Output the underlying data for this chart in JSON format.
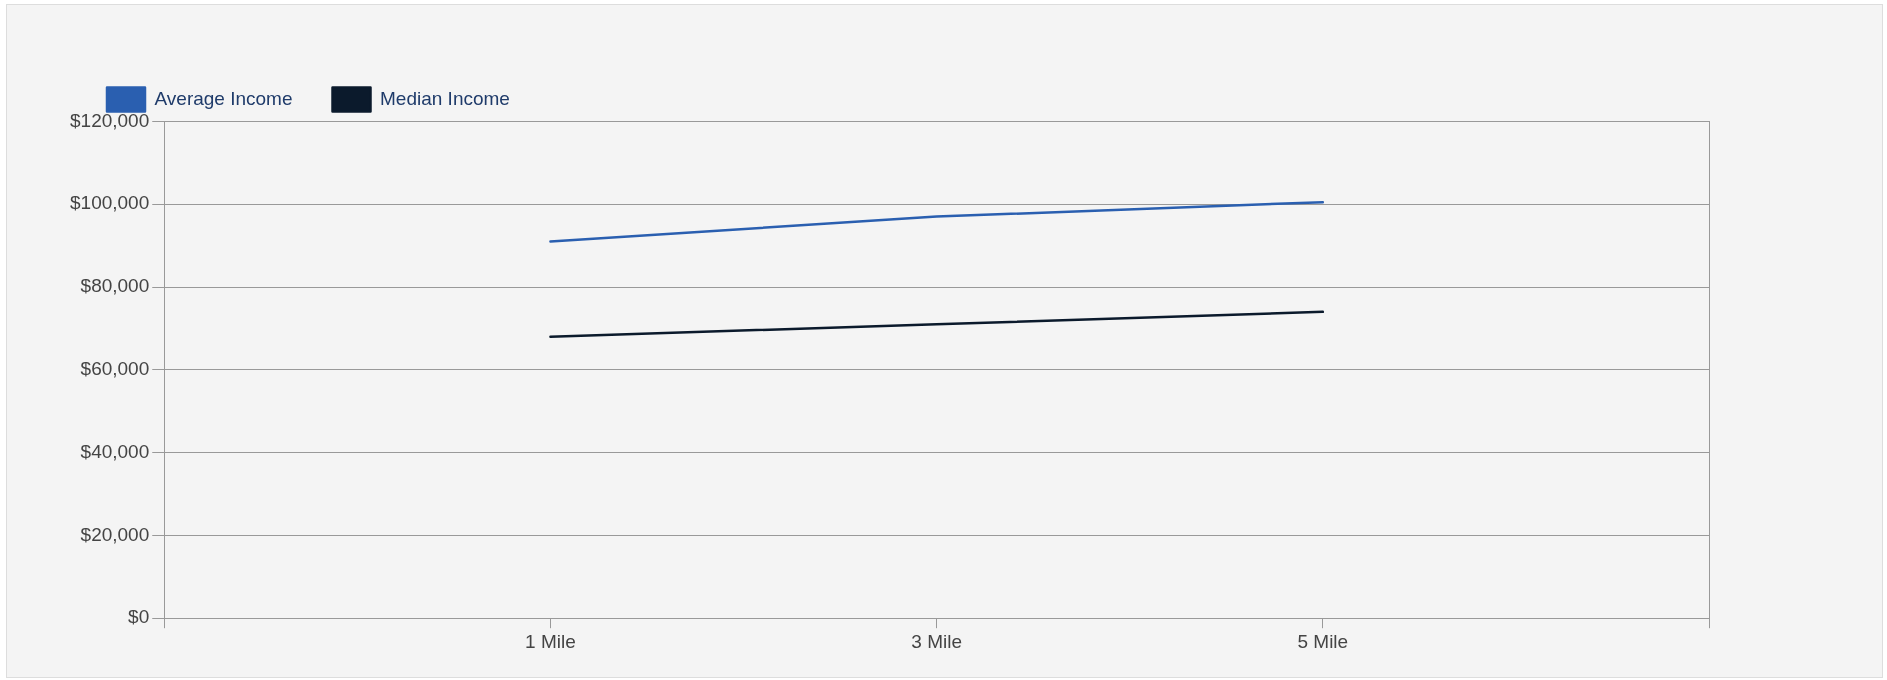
{
  "chart_data": {
    "type": "line",
    "categories": [
      null,
      "1 Mile",
      "3 Mile",
      "5 Mile",
      null
    ],
    "series": [
      {
        "name": "Average Income",
        "color": "#2a5fb0",
        "values": [
          null,
          91000,
          97000,
          100500,
          null
        ]
      },
      {
        "name": "Median Income",
        "color": "#0b1a2c",
        "values": [
          null,
          68000,
          71000,
          74000,
          null
        ]
      }
    ],
    "ylim": [
      0,
      120000
    ],
    "yticks": [
      {
        "value": 0,
        "label": "$0"
      },
      {
        "value": 20000,
        "label": "$20,000"
      },
      {
        "value": 40000,
        "label": "$40,000"
      },
      {
        "value": 60000,
        "label": "$60,000"
      },
      {
        "value": 80000,
        "label": "$80,000"
      },
      {
        "value": 100000,
        "label": "$100,000"
      },
      {
        "value": 120000,
        "label": "$120,000"
      }
    ],
    "grid": "y",
    "legend": "top left",
    "marker": "none",
    "line_style": "solid"
  }
}
